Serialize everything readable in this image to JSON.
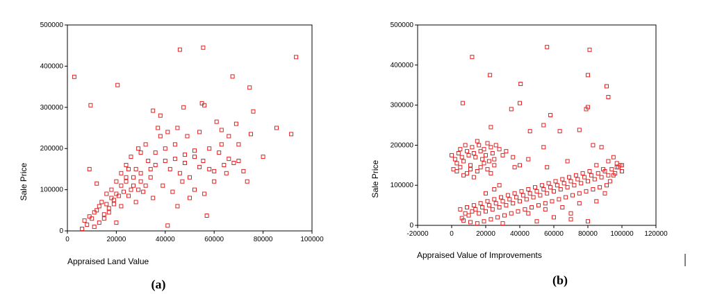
{
  "chart_data": [
    {
      "type": "scatter",
      "panel": "(a)",
      "xlabel": "Appraised Land Value",
      "ylabel": "Sale Price",
      "xlim": [
        0,
        100000
      ],
      "ylim": [
        0,
        500000
      ],
      "xticks": [
        0,
        20000,
        40000,
        60000,
        80000,
        100000
      ],
      "xtick_labels": [
        "0",
        "20000",
        "40000",
        "60000",
        "80000",
        "100000"
      ],
      "yticks": [
        0,
        100000,
        200000,
        300000,
        400000,
        500000
      ],
      "ytick_labels": [
        "0",
        "100000",
        "200000",
        "300000",
        "400000",
        "500000"
      ],
      "grid": false,
      "marker_color": "#e02020",
      "marker": "hollow-square",
      "points": [
        [
          2800,
          374000
        ],
        [
          9500,
          305000
        ],
        [
          20500,
          354000
        ],
        [
          46000,
          440000
        ],
        [
          55500,
          445000
        ],
        [
          93500,
          422000
        ],
        [
          67500,
          375000
        ],
        [
          74500,
          348000
        ],
        [
          55000,
          310000
        ],
        [
          56000,
          305000
        ],
        [
          47500,
          300000
        ],
        [
          76000,
          290000
        ],
        [
          35000,
          292000
        ],
        [
          38000,
          280000
        ],
        [
          61000,
          265000
        ],
        [
          85500,
          250000
        ],
        [
          91500,
          235000
        ],
        [
          63000,
          245000
        ],
        [
          55500,
          170000
        ],
        [
          9000,
          150000
        ],
        [
          12000,
          115000
        ],
        [
          73500,
          120000
        ],
        [
          41000,
          13000
        ],
        [
          57000,
          37000
        ],
        [
          20000,
          20000
        ],
        [
          45000,
          60000
        ],
        [
          50000,
          80000
        ],
        [
          30000,
          140000
        ],
        [
          33000,
          170000
        ],
        [
          36000,
          190000
        ],
        [
          40000,
          200000
        ],
        [
          44000,
          210000
        ],
        [
          48000,
          185000
        ],
        [
          52000,
          180000
        ],
        [
          58000,
          200000
        ],
        [
          62000,
          190000
        ],
        [
          66000,
          175000
        ],
        [
          70000,
          210000
        ],
        [
          28000,
          150000
        ],
        [
          32000,
          210000
        ],
        [
          38000,
          230000
        ],
        [
          42000,
          150000
        ],
        [
          46000,
          140000
        ],
        [
          50000,
          130000
        ],
        [
          54000,
          155000
        ],
        [
          60000,
          145000
        ],
        [
          64000,
          160000
        ],
        [
          68000,
          165000
        ],
        [
          72000,
          145000
        ],
        [
          26000,
          180000
        ],
        [
          29000,
          200000
        ],
        [
          34000,
          130000
        ],
        [
          39000,
          110000
        ],
        [
          43000,
          95000
        ],
        [
          47000,
          120000
        ],
        [
          52000,
          100000
        ],
        [
          56000,
          90000
        ],
        [
          24000,
          130000
        ],
        [
          27000,
          110000
        ],
        [
          31000,
          95000
        ],
        [
          35000,
          80000
        ],
        [
          22000,
          60000
        ],
        [
          25000,
          85000
        ],
        [
          28000,
          70000
        ],
        [
          18000,
          100000
        ],
        [
          20000,
          120000
        ],
        [
          22000,
          140000
        ],
        [
          24000,
          160000
        ],
        [
          16000,
          90000
        ],
        [
          14000,
          70000
        ],
        [
          12000,
          50000
        ],
        [
          10000,
          30000
        ],
        [
          8000,
          15000
        ],
        [
          6000,
          5000
        ],
        [
          15000,
          40000
        ],
        [
          17000,
          55000
        ],
        [
          19000,
          75000
        ],
        [
          21000,
          85000
        ],
        [
          23000,
          95000
        ],
        [
          13000,
          60000
        ],
        [
          11000,
          45000
        ],
        [
          9000,
          35000
        ],
        [
          7000,
          25000
        ],
        [
          16000,
          65000
        ],
        [
          18000,
          80000
        ],
        [
          20000,
          90000
        ],
        [
          26000,
          100000
        ],
        [
          30000,
          120000
        ],
        [
          36000,
          160000
        ],
        [
          40000,
          170000
        ],
        [
          44000,
          175000
        ],
        [
          48000,
          165000
        ],
        [
          52000,
          195000
        ],
        [
          58000,
          150000
        ],
        [
          63000,
          210000
        ],
        [
          66000,
          230000
        ],
        [
          69000,
          260000
        ],
        [
          54000,
          240000
        ],
        [
          49000,
          230000
        ],
        [
          45000,
          250000
        ],
        [
          41000,
          240000
        ],
        [
          37000,
          250000
        ],
        [
          30000,
          190000
        ],
        [
          25000,
          150000
        ],
        [
          19000,
          65000
        ],
        [
          17000,
          45000
        ],
        [
          15000,
          30000
        ],
        [
          13000,
          20000
        ],
        [
          11000,
          10000
        ],
        [
          22000,
          110000
        ],
        [
          24000,
          120000
        ],
        [
          27000,
          130000
        ],
        [
          29000,
          100000
        ],
        [
          32000,
          110000
        ],
        [
          34000,
          150000
        ],
        [
          60000,
          120000
        ],
        [
          65000,
          140000
        ],
        [
          70000,
          170000
        ],
        [
          75000,
          235000
        ],
        [
          80000,
          180000
        ]
      ]
    },
    {
      "type": "scatter",
      "panel": "(b)",
      "xlabel": "Appraised Value of Improvements",
      "ylabel": "Sale Price",
      "xlim": [
        -20000,
        120000
      ],
      "ylim": [
        0,
        500000
      ],
      "xticks": [
        -20000,
        0,
        20000,
        40000,
        60000,
        80000,
        100000,
        120000
      ],
      "xtick_labels": [
        "-20000",
        "0",
        "20000",
        "40000",
        "60000",
        "80000",
        "100000",
        "120000"
      ],
      "yticks": [
        0,
        100000,
        200000,
        300000,
        400000,
        500000
      ],
      "ytick_labels": [
        "0",
        "100000",
        "200000",
        "300000",
        "400000",
        "500000"
      ],
      "grid": false,
      "marker_color": "#e02020",
      "marker": "hollow-square",
      "points": [
        [
          12000,
          420000
        ],
        [
          22500,
          375000
        ],
        [
          40500,
          353000
        ],
        [
          56000,
          445000
        ],
        [
          81000,
          438000
        ],
        [
          80000,
          375000
        ],
        [
          91000,
          347000
        ],
        [
          92000,
          320000
        ],
        [
          6500,
          305000
        ],
        [
          40000,
          305000
        ],
        [
          35000,
          290000
        ],
        [
          80000,
          295000
        ],
        [
          79000,
          290000
        ],
        [
          58000,
          275000
        ],
        [
          54000,
          250000
        ],
        [
          46000,
          235000
        ],
        [
          23000,
          245000
        ],
        [
          75000,
          238000
        ],
        [
          63500,
          235000
        ],
        [
          40000,
          150000
        ],
        [
          36000,
          170000
        ],
        [
          37000,
          145000
        ],
        [
          56000,
          145000
        ],
        [
          54000,
          195000
        ],
        [
          83000,
          200000
        ],
        [
          88000,
          195000
        ],
        [
          92000,
          160000
        ],
        [
          97000,
          145000
        ],
        [
          45000,
          165000
        ],
        [
          68000,
          160000
        ],
        [
          0,
          175000
        ],
        [
          2000,
          165000
        ],
        [
          3000,
          155000
        ],
        [
          4000,
          180000
        ],
        [
          5000,
          190000
        ],
        [
          6000,
          170000
        ],
        [
          7000,
          160000
        ],
        [
          8000,
          200000
        ],
        [
          9000,
          185000
        ],
        [
          10000,
          175000
        ],
        [
          11000,
          150000
        ],
        [
          12000,
          195000
        ],
        [
          13000,
          180000
        ],
        [
          14000,
          170000
        ],
        [
          15000,
          210000
        ],
        [
          16000,
          200000
        ],
        [
          17000,
          185000
        ],
        [
          18000,
          165000
        ],
        [
          19000,
          190000
        ],
        [
          20000,
          175000
        ],
        [
          21000,
          205000
        ],
        [
          22000,
          160000
        ],
        [
          23000,
          195000
        ],
        [
          24000,
          180000
        ],
        [
          25000,
          150000
        ],
        [
          26000,
          200000
        ],
        [
          28000,
          190000
        ],
        [
          30000,
          175000
        ],
        [
          32000,
          185000
        ],
        [
          1000,
          140000
        ],
        [
          3000,
          135000
        ],
        [
          5000,
          145000
        ],
        [
          7000,
          125000
        ],
        [
          9000,
          130000
        ],
        [
          11000,
          140000
        ],
        [
          13000,
          120000
        ],
        [
          15000,
          135000
        ],
        [
          17000,
          145000
        ],
        [
          19000,
          155000
        ],
        [
          21000,
          140000
        ],
        [
          23000,
          130000
        ],
        [
          25000,
          165000
        ],
        [
          8000,
          30000
        ],
        [
          10000,
          25000
        ],
        [
          12000,
          35000
        ],
        [
          14000,
          40000
        ],
        [
          16000,
          30000
        ],
        [
          18000,
          45000
        ],
        [
          20000,
          35000
        ],
        [
          22000,
          50000
        ],
        [
          24000,
          40000
        ],
        [
          26000,
          55000
        ],
        [
          28000,
          45000
        ],
        [
          30000,
          60000
        ],
        [
          32000,
          50000
        ],
        [
          34000,
          65000
        ],
        [
          36000,
          55000
        ],
        [
          38000,
          70000
        ],
        [
          40000,
          60000
        ],
        [
          42000,
          75000
        ],
        [
          44000,
          65000
        ],
        [
          46000,
          80000
        ],
        [
          48000,
          70000
        ],
        [
          50000,
          85000
        ],
        [
          52000,
          75000
        ],
        [
          54000,
          90000
        ],
        [
          56000,
          80000
        ],
        [
          58000,
          95000
        ],
        [
          60000,
          85000
        ],
        [
          62000,
          100000
        ],
        [
          64000,
          90000
        ],
        [
          66000,
          105000
        ],
        [
          68000,
          95000
        ],
        [
          70000,
          110000
        ],
        [
          72000,
          100000
        ],
        [
          74000,
          115000
        ],
        [
          76000,
          105000
        ],
        [
          78000,
          120000
        ],
        [
          80000,
          110000
        ],
        [
          82000,
          125000
        ],
        [
          84000,
          115000
        ],
        [
          86000,
          130000
        ],
        [
          88000,
          120000
        ],
        [
          90000,
          135000
        ],
        [
          92000,
          125000
        ],
        [
          94000,
          140000
        ],
        [
          96000,
          130000
        ],
        [
          98000,
          145000
        ],
        [
          100000,
          135000
        ],
        [
          99000,
          150000
        ],
        [
          97000,
          155000
        ],
        [
          95000,
          125000
        ],
        [
          93000,
          110000
        ],
        [
          91000,
          100000
        ],
        [
          89000,
          140000
        ],
        [
          87000,
          95000
        ],
        [
          85000,
          150000
        ],
        [
          83000,
          90000
        ],
        [
          81000,
          135000
        ],
        [
          79000,
          85000
        ],
        [
          77000,
          130000
        ],
        [
          75000,
          80000
        ],
        [
          73000,
          125000
        ],
        [
          71000,
          75000
        ],
        [
          69000,
          120000
        ],
        [
          67000,
          70000
        ],
        [
          65000,
          115000
        ],
        [
          63000,
          65000
        ],
        [
          61000,
          110000
        ],
        [
          59000,
          60000
        ],
        [
          57000,
          105000
        ],
        [
          55000,
          55000
        ],
        [
          53000,
          100000
        ],
        [
          51000,
          50000
        ],
        [
          49000,
          95000
        ],
        [
          47000,
          45000
        ],
        [
          45000,
          90000
        ],
        [
          43000,
          40000
        ],
        [
          41000,
          85000
        ],
        [
          39000,
          35000
        ],
        [
          37000,
          80000
        ],
        [
          35000,
          30000
        ],
        [
          33000,
          75000
        ],
        [
          31000,
          25000
        ],
        [
          29000,
          70000
        ],
        [
          27000,
          20000
        ],
        [
          25000,
          65000
        ],
        [
          23000,
          15000
        ],
        [
          21000,
          60000
        ],
        [
          19000,
          10000
        ],
        [
          17000,
          55000
        ],
        [
          15000,
          5000
        ],
        [
          13000,
          50000
        ],
        [
          11000,
          8000
        ],
        [
          9000,
          45000
        ],
        [
          7000,
          12000
        ],
        [
          5000,
          40000
        ],
        [
          6000,
          18000
        ],
        [
          30000,
          5000
        ],
        [
          50000,
          10000
        ],
        [
          60000,
          20000
        ],
        [
          70000,
          30000
        ],
        [
          90000,
          80000
        ],
        [
          100000,
          150000
        ],
        [
          95000,
          170000
        ],
        [
          85000,
          60000
        ],
        [
          75000,
          55000
        ],
        [
          65000,
          45000
        ],
        [
          55000,
          40000
        ],
        [
          45000,
          30000
        ],
        [
          80000,
          10000
        ],
        [
          70000,
          15000
        ],
        [
          20000,
          80000
        ],
        [
          25000,
          90000
        ],
        [
          28000,
          100000
        ]
      ]
    }
  ]
}
